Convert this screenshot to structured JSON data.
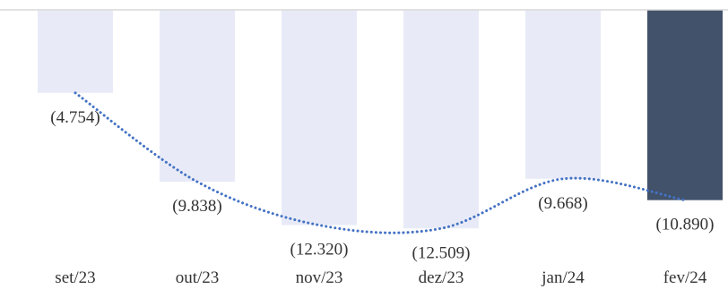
{
  "colors": {
    "bar_default": "#e8ebf7",
    "bar_highlight": "#42526b",
    "trendline": "#4472c4",
    "axis_line": "#d9d9d9",
    "text": "#333333"
  },
  "chart_data": {
    "type": "bar",
    "categories": [
      "set/23",
      "out/23",
      "nov/23",
      "dez/23",
      "jan/24",
      "fev/24"
    ],
    "values": [
      -4754,
      -9838,
      -12320,
      -12509,
      -9668,
      -10890
    ],
    "data_labels": [
      "(4.754)",
      "(9.838)",
      "(12.320)",
      "(12.509)",
      "(9.668)",
      "(10.890)"
    ],
    "highlight_index": 5,
    "trendline": "dotted, smoothed",
    "ylim": [
      -14500,
      0
    ],
    "grid": false,
    "legend": "none",
    "title": "",
    "xlabel": "",
    "ylabel": ""
  }
}
